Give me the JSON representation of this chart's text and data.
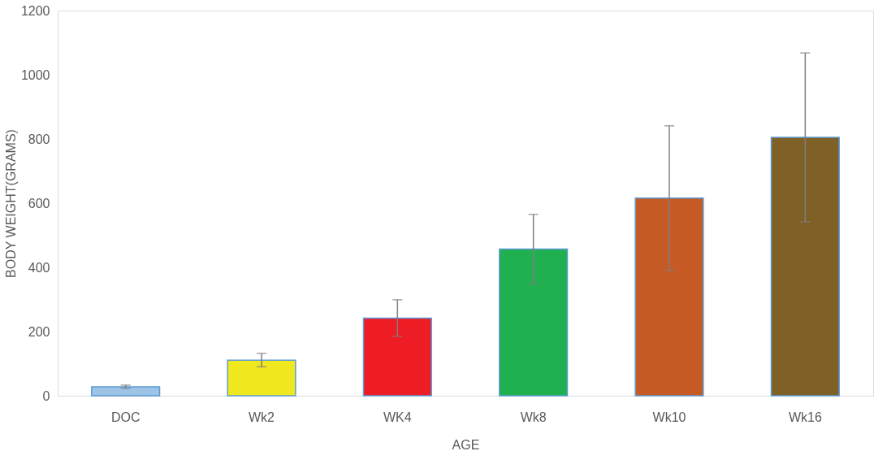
{
  "chart_data": {
    "type": "bar",
    "xlabel": "AGE",
    "ylabel": "BODY WEIGHT(GRAMS)",
    "categories": [
      "DOC",
      "Wk2",
      "WK4",
      "Wk8",
      "Wk10",
      "Wk16"
    ],
    "values": [
      28,
      111,
      242,
      457,
      616,
      805
    ],
    "colors": [
      "#9dc3e6",
      "#f0e81e",
      "#ee1c25",
      "#21b04f",
      "#c55a25",
      "#7f6026"
    ],
    "errors": [
      5,
      21,
      57,
      108,
      225,
      263
    ],
    "ylim": [
      0,
      1200
    ],
    "yticks": [
      0,
      200,
      400,
      600,
      800,
      1000,
      1200
    ],
    "grid": false
  }
}
